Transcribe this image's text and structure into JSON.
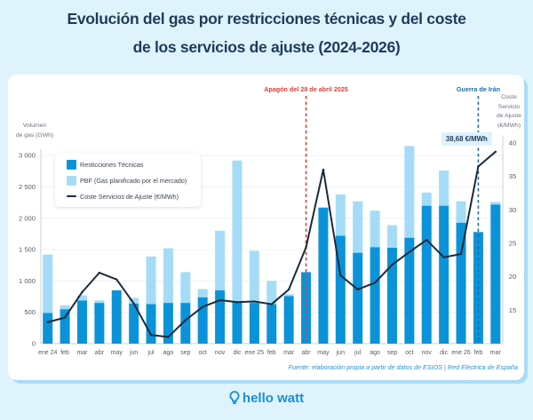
{
  "title": {
    "line1": "Evolución del gas por restricciones técnicas y del coste",
    "line2": "de los servicios de ajuste (2024-2026)"
  },
  "colors": {
    "restricciones": "#0b93da",
    "pbf": "#a4dcf7",
    "line": "#1c2a3a",
    "apagon": "#d6403c",
    "iran": "#1f6fa8",
    "callout_bg": "#def2fb",
    "grid": "#eef1f4",
    "axis": "#c9d0d7"
  },
  "legend": {
    "items": [
      {
        "label": "Resticciones Técnicas",
        "type": "bar",
        "series": "restricciones"
      },
      {
        "label": "PBF (Gas planificado por el mercado)",
        "type": "bar",
        "series": "pbf"
      },
      {
        "label": "Coste Servicios de Ajuste (€/MWh)",
        "type": "line",
        "series": "coste"
      }
    ]
  },
  "axis_titles": {
    "left": [
      "Volumen",
      "de gas (GWh)"
    ],
    "right": [
      "Coste",
      "Servicio",
      "de Ajuste",
      "(€/MWh)"
    ]
  },
  "source": "Fuente: elaboración propia a partir de datos de ESIOS | Red Eléctrica de España",
  "brand": {
    "name": "hello watt",
    "icon": "lightbulb-icon"
  },
  "chart_data": {
    "type": "bar",
    "title": "Evolución del gas por restricciones técnicas y del coste de los servicios de ajuste (2024-2026)",
    "xlabel": "",
    "ylabel": "Volumen de gas (GWh)",
    "y2label": "Coste Servicio de Ajuste (€/MWh)",
    "ylim": [
      0,
      3200
    ],
    "y2lim": [
      10,
      40
    ],
    "y_ticks": [
      0,
      500,
      1000,
      1500,
      2000,
      2500,
      3000
    ],
    "y_tick_labels": [
      "0",
      "500",
      "1 000",
      "1 500",
      "2 000",
      "2 500",
      "3 000"
    ],
    "y2_ticks": [
      15,
      20,
      25,
      30,
      35,
      40
    ],
    "y2_tick_labels": [
      "15",
      "20",
      "25",
      "30",
      "35",
      "40"
    ],
    "grid": true,
    "legend_position": "top-left",
    "stacked": true,
    "categories": [
      "ene 24",
      "feb",
      "mar",
      "abr",
      "may",
      "jun",
      "jul",
      "ago",
      "sep",
      "oct",
      "nov",
      "dic",
      "ene 25",
      "feb",
      "mar",
      "abr",
      "may",
      "jun",
      "jul",
      "ago",
      "sep",
      "oct",
      "nov",
      "dic",
      "ene 26",
      "feb",
      "mar"
    ],
    "series": [
      {
        "name": "Resticciones Técnicas",
        "key": "restricciones",
        "axis": "left",
        "type": "bar",
        "values": [
          490,
          550,
          690,
          650,
          850,
          640,
          630,
          650,
          650,
          740,
          850,
          670,
          650,
          630,
          760,
          1140,
          2170,
          1720,
          1450,
          1540,
          1530,
          1690,
          2200,
          2200,
          1930,
          1780,
          2220
        ]
      },
      {
        "name": "PBF (Gas planificado por el mercado)",
        "key": "pbf",
        "axis": "left",
        "type": "bar",
        "values": [
          930,
          60,
          80,
          40,
          0,
          90,
          760,
          870,
          490,
          130,
          950,
          2250,
          830,
          370,
          30,
          0,
          0,
          660,
          820,
          580,
          360,
          1460,
          210,
          560,
          340,
          0,
          40
        ]
      },
      {
        "name": "Coste Servicios de Ajuste (€/MWh)",
        "key": "coste",
        "axis": "right",
        "type": "line",
        "values": [
          13.2,
          13.9,
          17.7,
          20.6,
          19.6,
          16.0,
          11.3,
          11.0,
          13.5,
          15.5,
          16.5,
          16.2,
          16.3,
          15.9,
          18.1,
          24.4,
          36.0,
          20.2,
          18.1,
          19.1,
          21.8,
          23.7,
          25.5,
          22.9,
          23.4,
          36.5,
          38.68
        ]
      }
    ],
    "annotations": [
      {
        "label": "Apagón del 28 de abril 2025",
        "category_index": 15,
        "color_key": "apagon"
      },
      {
        "label": "Guerra de Irán",
        "category_index": 25,
        "color_key": "iran"
      }
    ],
    "callout": {
      "label": "38,68 €/MWh",
      "series": "coste",
      "category_index": 26,
      "value": 38.68
    }
  }
}
